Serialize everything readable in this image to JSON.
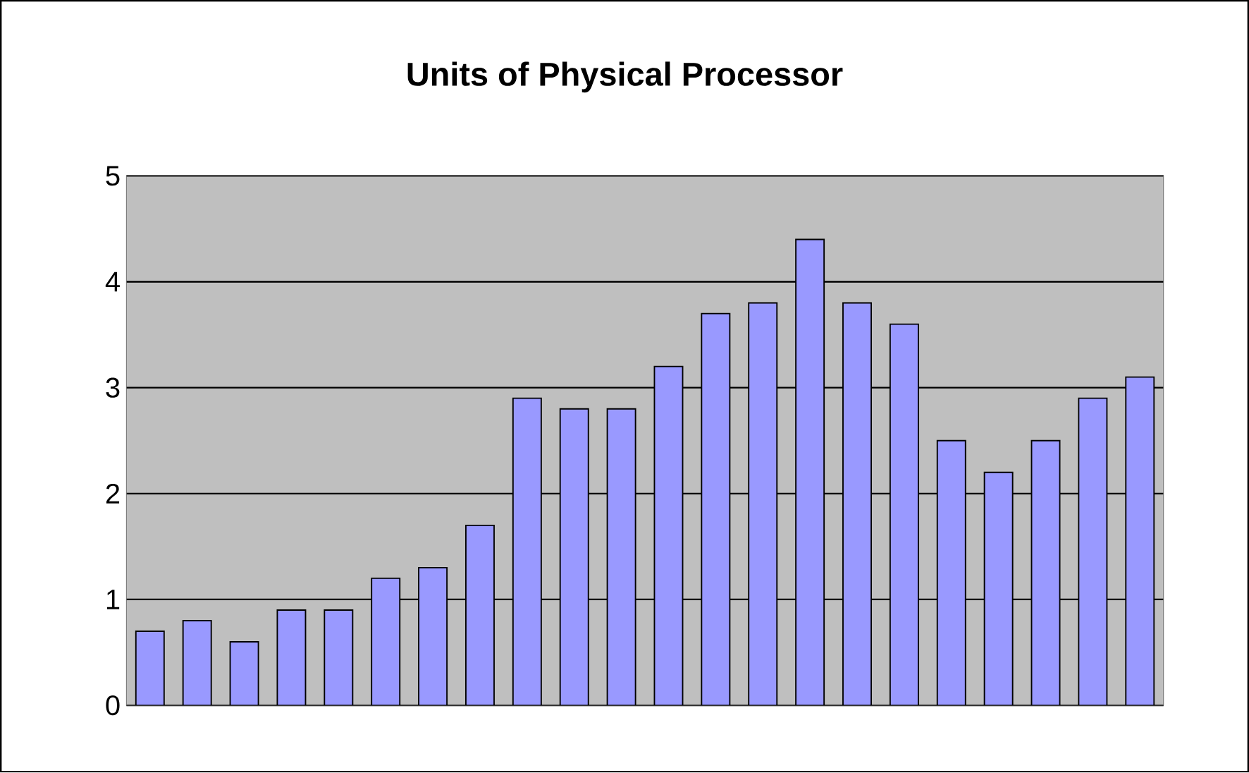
{
  "chart_data": {
    "type": "bar",
    "title": "Units of Physical Processor",
    "categories": [
      null,
      null,
      null,
      null,
      null,
      null,
      null,
      null,
      null,
      null,
      null,
      null,
      null,
      null,
      null,
      null,
      null,
      null,
      null,
      null,
      null,
      null
    ],
    "values": [
      0.7,
      0.8,
      0.6,
      0.9,
      0.9,
      1.2,
      1.3,
      1.7,
      2.9,
      2.8,
      2.8,
      3.2,
      3.7,
      3.8,
      4.4,
      3.8,
      3.6,
      2.5,
      2.2,
      2.5,
      2.9,
      3.1
    ],
    "color": "#9999ff",
    "ylim": [
      0,
      5
    ],
    "yticks": [
      0,
      1,
      2,
      3,
      4,
      5
    ],
    "grid": "y"
  }
}
